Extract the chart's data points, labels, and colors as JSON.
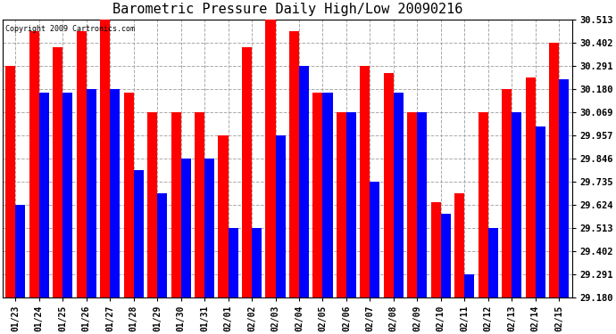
{
  "title": "Barometric Pressure Daily High/Low 20090216",
  "copyright": "Copyright 2009 Cartronics.com",
  "dates": [
    "01/23",
    "01/24",
    "01/25",
    "01/26",
    "01/27",
    "01/28",
    "01/29",
    "01/30",
    "01/31",
    "02/01",
    "02/02",
    "02/03",
    "02/04",
    "02/05",
    "02/06",
    "02/07",
    "02/08",
    "02/09",
    "02/10",
    "02/11",
    "02/12",
    "02/13",
    "02/14",
    "02/15"
  ],
  "highs": [
    30.291,
    30.457,
    30.38,
    30.457,
    30.513,
    30.16,
    30.069,
    30.069,
    30.069,
    29.957,
    30.38,
    30.513,
    30.457,
    30.16,
    30.069,
    30.291,
    30.257,
    30.069,
    29.635,
    29.68,
    30.069,
    30.18,
    30.235,
    30.402
  ],
  "lows": [
    29.624,
    30.16,
    30.16,
    30.18,
    30.18,
    29.79,
    29.68,
    29.846,
    29.846,
    29.513,
    29.513,
    29.957,
    30.291,
    30.16,
    30.069,
    29.735,
    30.16,
    30.069,
    29.58,
    29.291,
    29.513,
    30.069,
    30.0,
    30.225
  ],
  "high_color": "#FF0000",
  "low_color": "#0000FF",
  "bg_color": "#FFFFFF",
  "grid_color": "#AAAAAA",
  "ymin": 29.18,
  "ymax": 30.513,
  "yticks": [
    29.18,
    29.291,
    29.402,
    29.513,
    29.624,
    29.735,
    29.846,
    29.957,
    30.069,
    30.18,
    30.291,
    30.402,
    30.513
  ]
}
